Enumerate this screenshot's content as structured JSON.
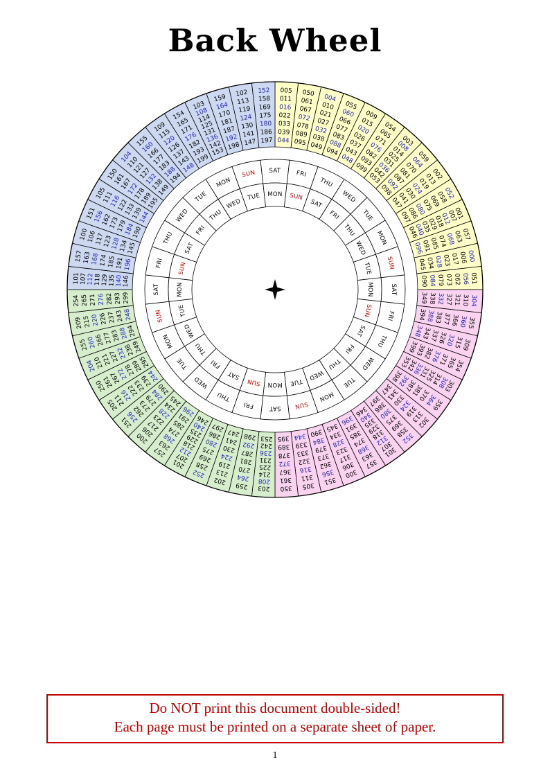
{
  "page": {
    "title": "Back Wheel",
    "page_number": "1",
    "warning": {
      "line1": "Do NOT print this document double-sided!",
      "line2": "Each page must be printed on a separate sheet of paper.",
      "color": "#c00000"
    }
  },
  "wheel": {
    "colors": {
      "yellow_quadrant": "#ffffc8",
      "pink_quadrant": "#f9d3f0",
      "green_quadrant": "#d7eecd",
      "blue_quadrant": "#cdd9f0",
      "leap_year_number": "#2222bb",
      "common_year_number": "#000000",
      "sunday_label": "#cc0000",
      "weekday_label": "#000000",
      "line": "#000000",
      "day_cell_fill": "#ffffff"
    },
    "geometry": {
      "outer_radius": 300,
      "number_ring_inner_radius": 206,
      "day_ring_outer": [
        154,
        188
      ],
      "day_ring_inner": [
        120,
        154
      ],
      "sector_span_deg": 12.857
    },
    "quadrants": [
      {
        "name": "years-000-099",
        "color_key": "yellow_quadrant",
        "start_deg": 0,
        "sectors": [
          {
            "columns": [
              [
                "005",
                "011",
                "016",
                "022",
                "033",
                "039",
                "044"
              ],
              [
                "050",
                "061",
                "067",
                "072",
                "078",
                "089",
                "095"
              ]
            ]
          },
          {
            "columns": [
              [
                "004",
                "010",
                "021",
                "027",
                "032",
                "038",
                "049"
              ],
              [
                "055",
                "060",
                "066",
                "077",
                "083",
                "088",
                "094"
              ]
            ]
          },
          {
            "columns": [
              [
                "009",
                "015",
                "020",
                "026",
                "037",
                "043",
                "048"
              ],
              [
                "054",
                "065",
                "071",
                "076",
                "082",
                "093",
                "099"
              ]
            ]
          },
          {
            "columns": [
              [
                "003",
                "008",
                "014",
                "025",
                "031",
                "036",
                "042",
                "053"
              ],
              [
                "059",
                "064",
                "070",
                "081",
                "087",
                "092",
                "098"
              ]
            ]
          },
          {
            "columns": [
              [
                "002",
                "013",
                "019",
                "024",
                "030",
                "041",
                "047"
              ],
              [
                "052",
                "058",
                "069",
                "075",
                "080",
                "086",
                "097"
              ]
            ]
          },
          {
            "columns": [
              [
                "001",
                "007",
                "012",
                "018",
                "029",
                "035",
                "040",
                "046"
              ],
              [
                "057",
                "063",
                "068",
                "074",
                "085",
                "091",
                "096"
              ]
            ]
          },
          {
            "columns": [
              [
                "000",
                "006",
                "017",
                "023",
                "028",
                "034",
                "045"
              ],
              [
                "051",
                "056",
                "062",
                "073",
                "079",
                "084",
                "090"
              ]
            ]
          }
        ]
      },
      {
        "name": "years-300-399",
        "color_key": "pink_quadrant",
        "start_deg": 90,
        "sectors": [
          {
            "columns": [
              [
                "304",
                "310",
                "321",
                "327",
                "332",
                "338",
                "349"
              ],
              [
                "355",
                "360",
                "366",
                "377",
                "383",
                "388",
                "394"
              ]
            ]
          },
          {
            "columns": [
              [
                "309",
                "315",
                "320",
                "326",
                "337",
                "343",
                "348"
              ],
              [
                "354",
                "365",
                "371",
                "376",
                "382",
                "393",
                "399"
              ]
            ]
          },
          {
            "columns": [
              [
                "303",
                "308",
                "314",
                "325",
                "331",
                "336",
                "342",
                "353"
              ],
              [
                "359",
                "364",
                "370",
                "381",
                "387",
                "392",
                "398"
              ]
            ]
          },
          {
            "columns": [
              [
                "302",
                "313",
                "319",
                "324",
                "330",
                "341",
                "347"
              ],
              [
                "352",
                "358",
                "369",
                "375",
                "380",
                "386",
                "397"
              ]
            ]
          },
          {
            "columns": [
              [
                "301",
                "307",
                "312",
                "318",
                "329",
                "335",
                "340",
                "346"
              ],
              [
                "357",
                "363",
                "368",
                "374",
                "385",
                "391",
                "396"
              ]
            ]
          },
          {
            "columns": [
              [
                "300",
                "306",
                "317",
                "323",
                "328",
                "334",
                "345"
              ],
              [
                "351",
                "356",
                "362",
                "373",
                "379",
                "384",
                "390"
              ]
            ]
          },
          {
            "columns": [
              [
                "305",
                "311",
                "316",
                "322",
                "333",
                "339",
                "344"
              ],
              [
                "350",
                "361",
                "367",
                "372",
                "378",
                "389",
                "395"
              ]
            ]
          }
        ]
      },
      {
        "name": "years-200-299",
        "color_key": "green_quadrant",
        "start_deg": 180,
        "sectors": [
          {
            "columns": [
              [
                "203",
                "208",
                "214",
                "225",
                "231",
                "236",
                "242",
                "253"
              ],
              [
                "259",
                "264",
                "270",
                "281",
                "287",
                "292",
                "298"
              ]
            ]
          },
          {
            "columns": [
              [
                "202",
                "213",
                "219",
                "224",
                "230",
                "241",
                "247"
              ],
              [
                "252",
                "258",
                "269",
                "275",
                "280",
                "286",
                "297"
              ]
            ]
          },
          {
            "columns": [
              [
                "201",
                "207",
                "212",
                "218",
                "229",
                "235",
                "240",
                "246"
              ],
              [
                "257",
                "263",
                "268",
                "274",
                "285",
                "291",
                "296"
              ]
            ]
          },
          {
            "columns": [
              [
                "200",
                "206",
                "217",
                "223",
                "228",
                "234",
                "245"
              ],
              [
                "251",
                "256",
                "262",
                "273",
                "279",
                "284",
                "290"
              ]
            ]
          },
          {
            "columns": [
              [
                "205",
                "211",
                "216",
                "222",
                "233",
                "239",
                "244"
              ],
              [
                "250",
                "261",
                "267",
                "272",
                "278",
                "289",
                "295"
              ]
            ]
          },
          {
            "columns": [
              [
                "204",
                "210",
                "221",
                "227",
                "232",
                "238",
                "249"
              ],
              [
                "255",
                "260",
                "266",
                "277",
                "283",
                "288",
                "294"
              ]
            ]
          },
          {
            "columns": [
              [
                "209",
                "215",
                "220",
                "226",
                "237",
                "243",
                "248"
              ],
              [
                "254",
                "265",
                "271",
                "276",
                "282",
                "293",
                "299"
              ]
            ]
          }
        ]
      },
      {
        "name": "years-100-199",
        "color_key": "blue_quadrant",
        "start_deg": 270,
        "sectors": [
          {
            "columns": [
              [
                "101",
                "107",
                "112",
                "118",
                "129",
                "135",
                "140",
                "146"
              ],
              [
                "157",
                "163",
                "168",
                "174",
                "185",
                "191",
                "196"
              ]
            ]
          },
          {
            "columns": [
              [
                "100",
                "106",
                "117",
                "123",
                "128",
                "134",
                "145"
              ],
              [
                "151",
                "156",
                "162",
                "173",
                "179",
                "184",
                "190"
              ]
            ]
          },
          {
            "columns": [
              [
                "105",
                "111",
                "116",
                "122",
                "133",
                "139",
                "144"
              ],
              [
                "150",
                "161",
                "167",
                "172",
                "178",
                "189",
                "195"
              ]
            ]
          },
          {
            "columns": [
              [
                "104",
                "110",
                "121",
                "127",
                "132",
                "138",
                "149"
              ],
              [
                "155",
                "160",
                "166",
                "177",
                "183",
                "188",
                "194"
              ]
            ]
          },
          {
            "columns": [
              [
                "109",
                "115",
                "120",
                "126",
                "137",
                "143",
                "148"
              ],
              [
                "154",
                "165",
                "171",
                "176",
                "182",
                "193",
                "199"
              ]
            ]
          },
          {
            "columns": [
              [
                "103",
                "108",
                "114",
                "125",
                "131",
                "136",
                "142",
                "153"
              ],
              [
                "159",
                "164",
                "170",
                "181",
                "187",
                "192",
                "198"
              ]
            ]
          },
          {
            "columns": [
              [
                "102",
                "113",
                "119",
                "124",
                "130",
                "141",
                "147"
              ],
              [
                "152",
                "158",
                "169",
                "175",
                "180",
                "186",
                "197"
              ]
            ]
          }
        ]
      }
    ],
    "day_rings": {
      "outer": {
        "sequence_clockwise": [
          "SUN",
          "SAT",
          "FRI",
          "THU",
          "WED",
          "TUE",
          "MON"
        ],
        "repetitions": 4,
        "first_center_deg": -12.857
      },
      "inner": {
        "sequence_clockwise": [
          "TUE",
          "MON",
          "SUN",
          "SAT",
          "FRI",
          "THU",
          "WED"
        ],
        "repetitions": 4,
        "first_center_deg": -12.857
      }
    },
    "center_marker": "four-pointed-star"
  }
}
